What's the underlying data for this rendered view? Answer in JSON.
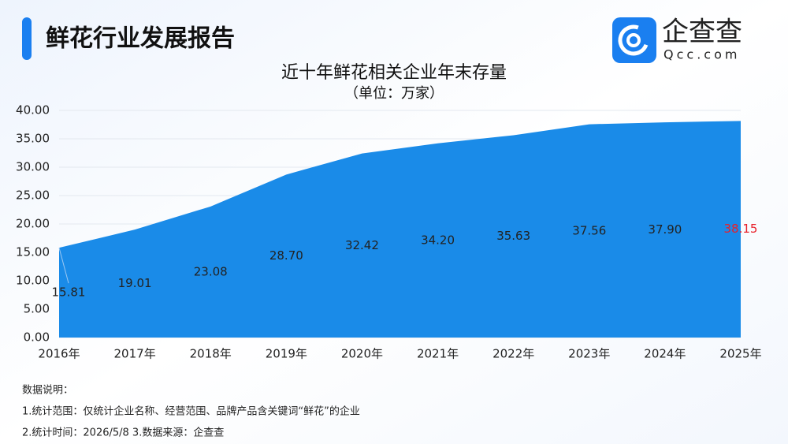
{
  "header": {
    "title": "鲜花行业发展报告",
    "logo_text": "企查查",
    "logo_domain": "Qcc.com"
  },
  "chart_data": {
    "type": "area",
    "title": "近十年鲜花相关企业年末存量",
    "subtitle": "（单位：万家）",
    "categories": [
      "2016年",
      "2017年",
      "2018年",
      "2019年",
      "2020年",
      "2021年",
      "2022年",
      "2023年",
      "2024年",
      "2025年"
    ],
    "values": [
      15.81,
      19.01,
      23.08,
      28.7,
      32.42,
      34.2,
      35.63,
      37.56,
      37.9,
      38.15
    ],
    "value_labels": [
      "15.81",
      "19.01",
      "23.08",
      "28.70",
      "32.42",
      "34.20",
      "35.63",
      "37.56",
      "37.90",
      "38.15"
    ],
    "color": "#1a8be8",
    "value_label_color": "#222222",
    "last_label_color": "#e8202a",
    "ylim": [
      0,
      40
    ],
    "yticks": [
      {
        "value": 0,
        "label": "0.00"
      },
      {
        "value": 5,
        "label": "5.00"
      },
      {
        "value": 10,
        "label": "10.00"
      },
      {
        "value": 15,
        "label": "15.00"
      },
      {
        "value": 20,
        "label": "20.00"
      },
      {
        "value": 25,
        "label": "25.00"
      },
      {
        "value": 30,
        "label": "30.00"
      },
      {
        "value": 35,
        "label": "35.00"
      },
      {
        "value": 40,
        "label": "40.00"
      }
    ],
    "grid": true
  },
  "notes": [
    "数据说明：",
    "1.统计范围：仅统计企业名称、经营范围、品牌产品含关键词“鲜花”的企业",
    "2.统计时间：2026/5/8 3.数据来源：企查查"
  ]
}
